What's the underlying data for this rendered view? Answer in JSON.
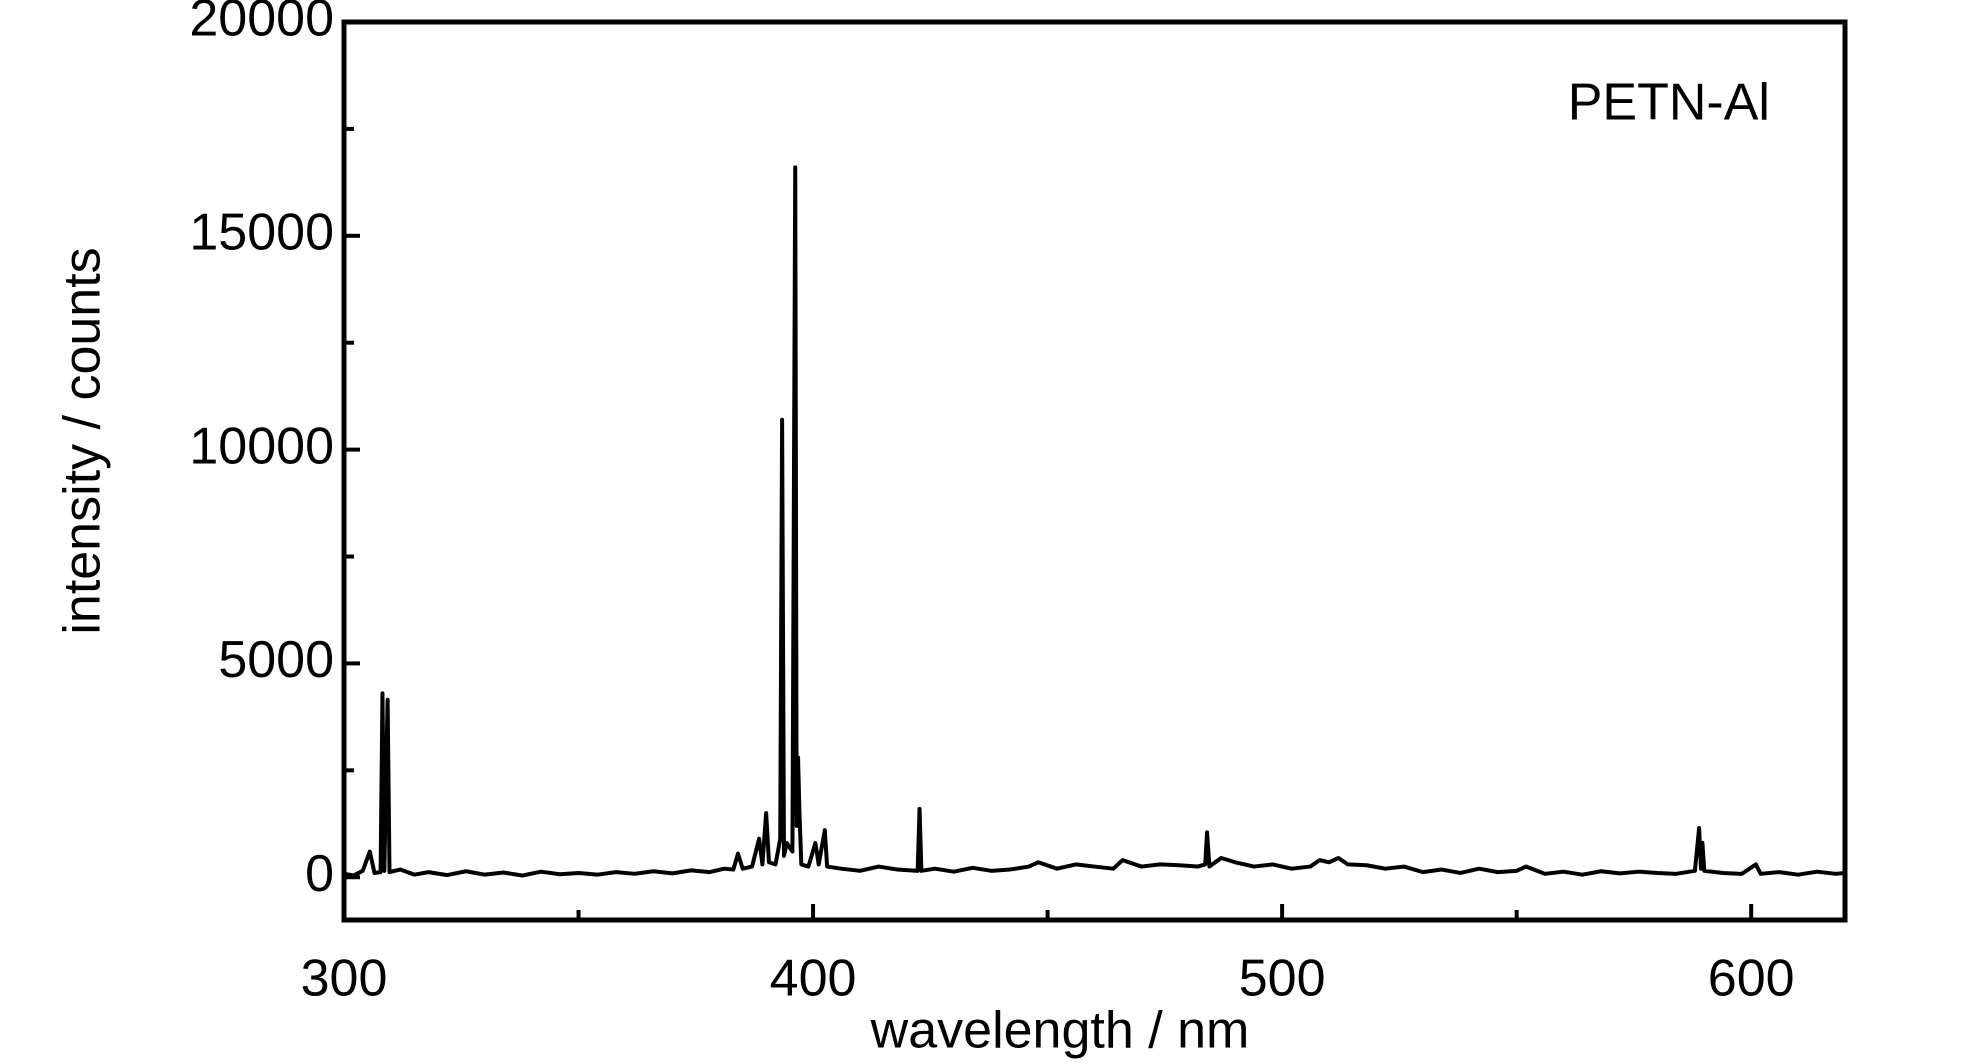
{
  "chart_data": {
    "type": "line",
    "annotation": "PETN-Al",
    "x_label": "wavelength / nm",
    "y_label": "intensity / counts",
    "color": "#000000",
    "x": [
      300,
      302,
      304,
      305.5,
      306.5,
      307.8,
      308.2,
      308.6,
      309.3,
      309.7,
      312,
      315,
      318,
      322,
      326,
      330,
      334,
      338,
      342,
      346,
      350,
      354,
      358,
      362,
      366,
      370,
      374,
      378,
      381,
      383,
      384,
      385,
      387,
      388.5,
      389.2,
      390,
      390.6,
      392,
      393.0,
      393.4,
      393.8,
      394.4,
      395.6,
      396.2,
      396.5,
      396.8,
      397.1,
      397.5,
      399,
      400.5,
      401.2,
      402.5,
      403,
      406,
      410,
      414,
      418,
      422.3,
      422.7,
      423.1,
      426,
      430,
      434,
      438,
      442,
      446,
      448,
      452,
      456,
      460,
      464,
      466,
      470,
      474,
      478,
      482,
      483.6,
      484,
      484.5,
      487,
      490,
      494,
      498,
      502,
      506,
      508,
      510,
      512,
      514,
      518,
      522,
      526,
      530,
      534,
      538,
      542,
      546,
      550,
      552,
      556,
      560,
      564,
      568,
      572,
      576,
      580,
      584,
      588,
      588.9,
      589.3,
      589.6,
      590,
      594,
      598,
      601,
      602,
      606,
      610,
      614,
      618,
      620
    ],
    "values": [
      80,
      40,
      150,
      600,
      100,
      120,
      4300,
      150,
      4150,
      120,
      180,
      60,
      120,
      50,
      140,
      60,
      110,
      40,
      130,
      70,
      100,
      60,
      120,
      80,
      140,
      90,
      160,
      120,
      200,
      180,
      550,
      200,
      250,
      900,
      300,
      1500,
      350,
      300,
      900,
      10700,
      500,
      800,
      600,
      16600,
      1200,
      2800,
      1500,
      300,
      250,
      800,
      300,
      1100,
      250,
      200,
      150,
      250,
      180,
      150,
      1600,
      150,
      200,
      130,
      220,
      150,
      180,
      250,
      350,
      200,
      300,
      250,
      200,
      400,
      250,
      300,
      280,
      250,
      300,
      1050,
      250,
      450,
      350,
      250,
      300,
      200,
      250,
      400,
      350,
      450,
      300,
      280,
      200,
      250,
      120,
      180,
      100,
      200,
      120,
      150,
      250,
      80,
      130,
      60,
      140,
      90,
      130,
      100,
      80,
      150,
      1150,
      200,
      800,
      150,
      100,
      80,
      300,
      80,
      120,
      60,
      130,
      80,
      100
    ],
    "xlim": [
      300,
      620
    ],
    "ylim": [
      -1000,
      20000
    ],
    "xticks": [
      300,
      400,
      500,
      600
    ],
    "xminorticks": [
      350,
      450,
      550
    ],
    "yticks": [
      0,
      5000,
      10000,
      15000,
      20000
    ],
    "yminorticks": [
      2500,
      7500,
      12500,
      17500
    ]
  }
}
